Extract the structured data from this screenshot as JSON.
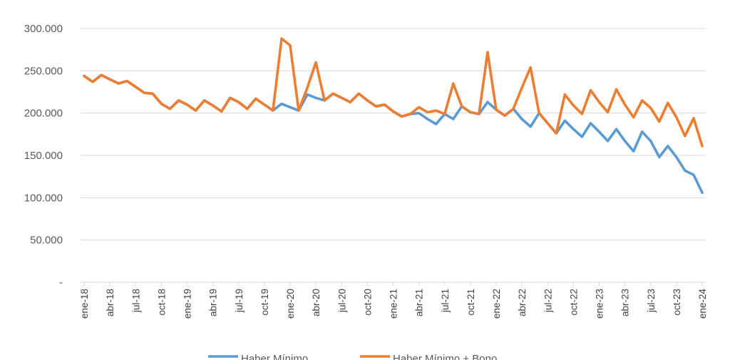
{
  "chart_data": {
    "type": "line",
    "title": "",
    "xlabel": "",
    "ylabel": "",
    "ylim": [
      0,
      300000
    ],
    "yticks": [
      0,
      50000,
      100000,
      150000,
      200000,
      250000,
      300000
    ],
    "ytick_labels": [
      "-",
      "50.000",
      "100.000",
      "150.000",
      "200.000",
      "250.000",
      "300.000"
    ],
    "grid": true,
    "legend_position": "bottom",
    "x": [
      "ene-18",
      "feb-18",
      "mar-18",
      "abr-18",
      "may-18",
      "jun-18",
      "jul-18",
      "ago-18",
      "sep-18",
      "oct-18",
      "nov-18",
      "dic-18",
      "ene-19",
      "feb-19",
      "mar-19",
      "abr-19",
      "may-19",
      "jun-19",
      "jul-19",
      "ago-19",
      "sep-19",
      "oct-19",
      "nov-19",
      "dic-19",
      "ene-20",
      "feb-20",
      "mar-20",
      "abr-20",
      "may-20",
      "jun-20",
      "jul-20",
      "ago-20",
      "sep-20",
      "oct-20",
      "nov-20",
      "dic-20",
      "ene-21",
      "feb-21",
      "mar-21",
      "abr-21",
      "may-21",
      "jun-21",
      "jul-21",
      "ago-21",
      "sep-21",
      "oct-21",
      "nov-21",
      "dic-21",
      "ene-22",
      "feb-22",
      "mar-22",
      "abr-22",
      "may-22",
      "jun-22",
      "jul-22",
      "ago-22",
      "sep-22",
      "oct-22",
      "nov-22",
      "dic-22",
      "ene-23",
      "feb-23",
      "mar-23",
      "abr-23",
      "may-23",
      "jun-23",
      "jul-23",
      "ago-23",
      "sep-23",
      "oct-23",
      "nov-23",
      "dic-23",
      "ene-24"
    ],
    "x_tick_labels": [
      "ene-18",
      "abr-18",
      "jul-18",
      "oct-18",
      "ene-19",
      "abr-19",
      "jul-19",
      "oct-19",
      "ene-20",
      "abr-20",
      "jul-20",
      "oct-20",
      "ene-21",
      "abr-21",
      "jul-21",
      "oct-21",
      "ene-22",
      "abr-22",
      "jul-22",
      "oct-22",
      "ene-23",
      "abr-23",
      "jul-23",
      "oct-23",
      "ene-24"
    ],
    "series": [
      {
        "name": "Haber Mínimo",
        "color": "#5B9BD5",
        "values": [
          244000,
          237000,
          245000,
          240000,
          235000,
          238000,
          231000,
          224000,
          223000,
          211000,
          205000,
          215000,
          210000,
          203000,
          215000,
          209000,
          202000,
          218000,
          213000,
          205000,
          217000,
          210000,
          203000,
          211000,
          207000,
          203000,
          222000,
          218000,
          215000,
          223000,
          218000,
          213000,
          223000,
          215000,
          208000,
          210000,
          202000,
          196000,
          199000,
          200000,
          193000,
          187000,
          199000,
          193000,
          208000,
          201000,
          199000,
          213000,
          204000,
          197000,
          205000,
          193000,
          184000,
          200000,
          188000,
          176000,
          191000,
          181000,
          172000,
          188000,
          178000,
          167000,
          181000,
          167000,
          155000,
          178000,
          167000,
          148000,
          161000,
          148000,
          132000,
          127000,
          106000
        ]
      },
      {
        "name": "Haber Mínimo + Bono",
        "color": "#ED7D31",
        "values": [
          244000,
          237000,
          245000,
          240000,
          235000,
          238000,
          231000,
          224000,
          223000,
          211000,
          205000,
          215000,
          210000,
          203000,
          215000,
          209000,
          202000,
          218000,
          213000,
          205000,
          217000,
          210000,
          203000,
          288000,
          280000,
          203000,
          230000,
          260000,
          215000,
          223000,
          218000,
          213000,
          223000,
          215000,
          208000,
          210000,
          202000,
          196000,
          199000,
          207000,
          201000,
          203000,
          199000,
          235000,
          208000,
          201000,
          199000,
          272000,
          204000,
          197000,
          205000,
          230000,
          254000,
          200000,
          188000,
          176000,
          222000,
          209000,
          199000,
          227000,
          213000,
          201000,
          228000,
          210000,
          195000,
          215000,
          206000,
          190000,
          212000,
          195000,
          173000,
          194000,
          161000
        ]
      }
    ]
  }
}
